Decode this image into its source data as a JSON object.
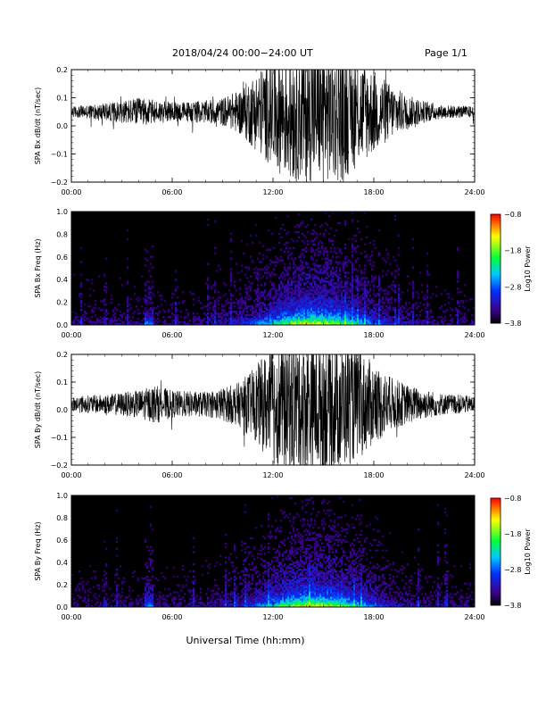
{
  "header": {
    "title": "2018/04/24  00:00−24:00 UT",
    "page": "Page 1/1"
  },
  "xaxis": {
    "label": "Universal Time (hh:mm)",
    "ticks": [
      "00:00",
      "06:00",
      "12:00",
      "18:00",
      "24:00"
    ],
    "range_hours": [
      0,
      24
    ]
  },
  "chart_data": [
    {
      "type": "line",
      "ylabel": "SPA Bx dB/dt (nT/sec)",
      "ylim": [
        -0.2,
        0.2
      ],
      "yticks": [
        "−0.2",
        "−0.1",
        "0.0",
        "0.1",
        "0.2"
      ],
      "ytick_values": [
        -0.2,
        -0.1,
        0.0,
        0.1,
        0.2
      ],
      "baseline": 0.05,
      "envelope_hours": [
        0,
        2,
        4,
        6,
        8,
        9,
        10,
        11,
        12,
        13,
        14,
        15,
        16,
        17,
        18,
        19,
        20,
        21,
        22,
        24
      ],
      "envelope_amplitude": [
        0.02,
        0.03,
        0.05,
        0.035,
        0.04,
        0.05,
        0.08,
        0.14,
        0.2,
        0.25,
        0.25,
        0.25,
        0.25,
        0.2,
        0.15,
        0.1,
        0.06,
        0.04,
        0.025,
        0.02
      ]
    },
    {
      "type": "heatmap",
      "ylabel": "SPA Bx Freq (Hz)",
      "ylim": [
        0.0,
        1.0
      ],
      "yticks": [
        "0.0",
        "0.2",
        "0.4",
        "0.6",
        "0.8",
        "1.0"
      ],
      "ytick_values": [
        0.0,
        0.2,
        0.4,
        0.6,
        0.8,
        1.0
      ],
      "colorbar": {
        "label": "Log10 Power",
        "range": [
          -3.8,
          -0.8
        ],
        "ticks": [
          "−0.8",
          "−1.8",
          "−2.8",
          "−3.8"
        ],
        "tick_values": [
          -0.8,
          -1.8,
          -2.8,
          -3.8
        ]
      }
    },
    {
      "type": "line",
      "ylabel": "SPA By dB/dt (nT/sec)",
      "ylim": [
        -0.2,
        0.2
      ],
      "yticks": [
        "−0.2",
        "−0.1",
        "0.0",
        "0.1",
        "0.2"
      ],
      "ytick_values": [
        -0.2,
        -0.1,
        0.0,
        0.1,
        0.2
      ],
      "baseline": 0.02,
      "envelope_hours": [
        0,
        2,
        4,
        5,
        6,
        8,
        9,
        10,
        11,
        12,
        13,
        14,
        15,
        16,
        17,
        18,
        19,
        20,
        22,
        24
      ],
      "envelope_amplitude": [
        0.03,
        0.035,
        0.05,
        0.07,
        0.05,
        0.045,
        0.06,
        0.08,
        0.14,
        0.22,
        0.25,
        0.25,
        0.25,
        0.24,
        0.2,
        0.15,
        0.1,
        0.07,
        0.04,
        0.03
      ]
    },
    {
      "type": "heatmap",
      "ylabel": "SPA By Freq (Hz)",
      "ylim": [
        0.0,
        1.0
      ],
      "yticks": [
        "0.0",
        "0.2",
        "0.4",
        "0.6",
        "0.8",
        "1.0"
      ],
      "ytick_values": [
        0.0,
        0.2,
        0.4,
        0.6,
        0.8,
        1.0
      ],
      "colorbar": {
        "label": "Log10 Power",
        "range": [
          -3.8,
          -0.8
        ],
        "ticks": [
          "−0.8",
          "−1.8",
          "−2.8",
          "−3.8"
        ],
        "tick_values": [
          -0.8,
          -1.8,
          -2.8,
          -3.8
        ]
      }
    }
  ]
}
